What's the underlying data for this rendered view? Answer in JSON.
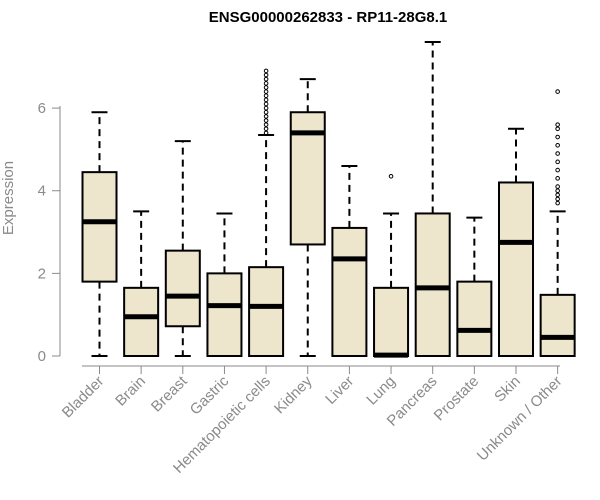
{
  "chart_data": {
    "type": "boxplot",
    "title": "ENSG00000262833 - RP11-28G8.1",
    "xlabel": "",
    "ylabel": "Expression",
    "ylim": [
      0,
      7.6
    ],
    "yticks": [
      0,
      2,
      4,
      6
    ],
    "categories": [
      "Bladder",
      "Brain",
      "Breast",
      "Gastric",
      "Hematopoietic cells",
      "Kidney",
      "Liver",
      "Lung",
      "Pancreas",
      "Prostate",
      "Skin",
      "Unknown / Other"
    ],
    "boxes": [
      {
        "label": "Bladder",
        "min": 0,
        "q1": 1.8,
        "median": 3.25,
        "q3": 4.45,
        "max": 5.9,
        "outliers": []
      },
      {
        "label": "Brain",
        "min": 0,
        "q1": 0,
        "median": 0.95,
        "q3": 1.65,
        "max": 3.5,
        "outliers": []
      },
      {
        "label": "Breast",
        "min": 0,
        "q1": 0.72,
        "median": 1.45,
        "q3": 2.55,
        "max": 5.2,
        "outliers": []
      },
      {
        "label": "Gastric",
        "min": 0,
        "q1": 0,
        "median": 1.22,
        "q3": 2.0,
        "max": 3.45,
        "outliers": []
      },
      {
        "label": "Hematopoietic cells",
        "min": 0,
        "q1": 0,
        "median": 1.2,
        "q3": 2.15,
        "max": 5.35,
        "outliers": [
          5.4,
          5.5,
          5.6,
          5.7,
          5.8,
          5.9,
          6.0,
          6.1,
          6.2,
          6.3,
          6.4,
          6.5,
          6.6,
          6.7,
          6.8,
          6.9
        ]
      },
      {
        "label": "Kidney",
        "min": 0,
        "q1": 2.7,
        "median": 5.4,
        "q3": 5.9,
        "max": 6.7,
        "outliers": []
      },
      {
        "label": "Liver",
        "min": 0,
        "q1": 0,
        "median": 2.35,
        "q3": 3.1,
        "max": 4.6,
        "outliers": []
      },
      {
        "label": "Lung",
        "min": 0,
        "q1": 0,
        "median": 0.02,
        "q3": 1.65,
        "max": 3.45,
        "outliers": [
          4.35
        ]
      },
      {
        "label": "Pancreas",
        "min": 0,
        "q1": 0,
        "median": 1.65,
        "q3": 3.45,
        "max": 7.6,
        "outliers": []
      },
      {
        "label": "Prostate",
        "min": 0,
        "q1": 0,
        "median": 0.62,
        "q3": 1.8,
        "max": 3.35,
        "outliers": []
      },
      {
        "label": "Skin",
        "min": 0,
        "q1": 0,
        "median": 2.75,
        "q3": 4.2,
        "max": 5.5,
        "outliers": []
      },
      {
        "label": "Unknown / Other",
        "min": 0,
        "q1": 0,
        "median": 0.45,
        "q3": 1.48,
        "max": 3.5,
        "outliers": [
          3.7,
          3.8,
          3.9,
          4.0,
          4.1,
          4.3,
          4.5,
          4.7,
          4.9,
          5.1,
          5.3,
          5.5,
          5.6,
          6.4
        ]
      }
    ],
    "colors": {
      "box_fill": "#ede6cc",
      "line": "#000000",
      "axis": "#8a8a8a"
    }
  }
}
